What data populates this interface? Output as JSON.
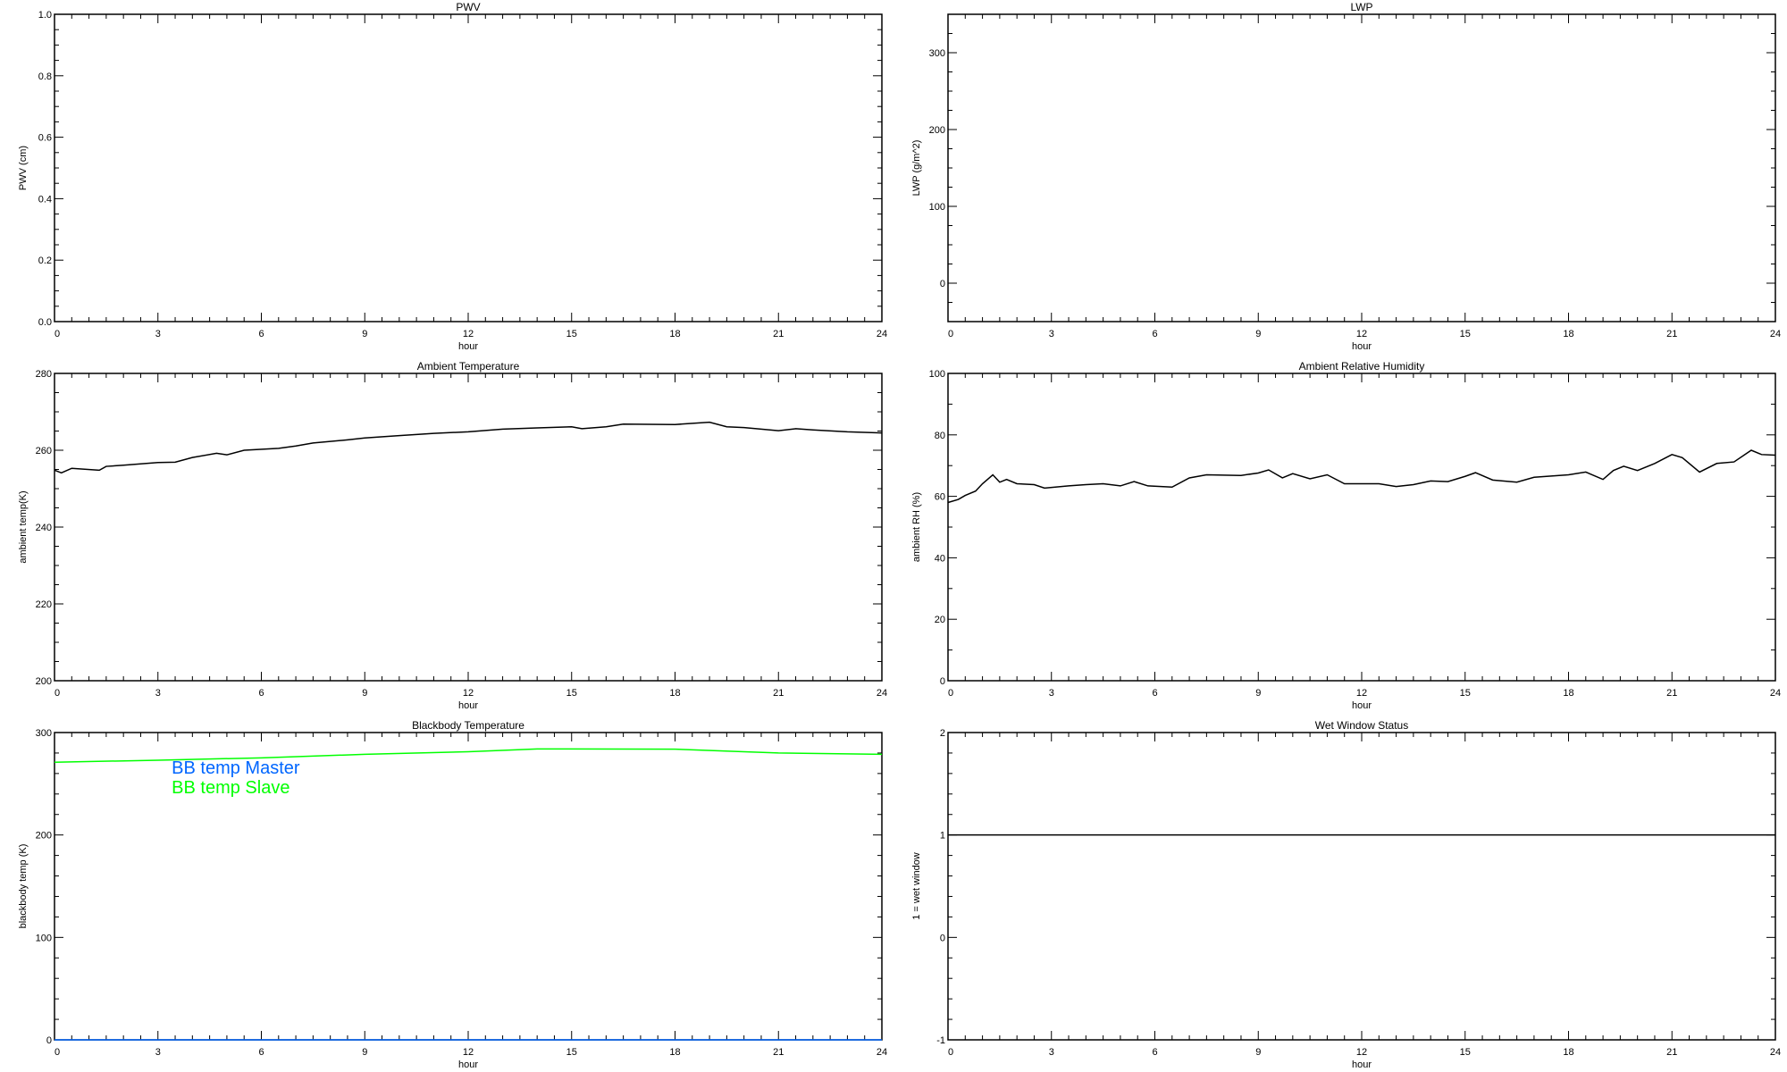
{
  "chart_data": [
    {
      "type": "line",
      "title": "PWV",
      "xlabel": "hour",
      "ylabel": "PWV (cm)",
      "xlim": [
        0,
        24
      ],
      "ylim": [
        0,
        1.0
      ],
      "xticks": [
        "0",
        "3",
        "6",
        "9",
        "12",
        "15",
        "18",
        "21",
        "24"
      ],
      "xminor": 6,
      "yticks": [
        "0.0",
        "0.2",
        "0.4",
        "0.6",
        "0.8",
        "1.0"
      ],
      "ytick_values": [
        0,
        0.2,
        0.4,
        0.6,
        0.8,
        1.0
      ],
      "yminor": 4,
      "grid": false,
      "series": []
    },
    {
      "type": "line",
      "title": "LWP",
      "xlabel": "hour",
      "ylabel": "LWP (g/m^2)",
      "xlim": [
        0,
        24
      ],
      "ylim": [
        -50,
        350
      ],
      "xticks": [
        "0",
        "3",
        "6",
        "9",
        "12",
        "15",
        "18",
        "21",
        "24"
      ],
      "xminor": 6,
      "yticks": [
        "0",
        "100",
        "200",
        "300"
      ],
      "ytick_values": [
        0,
        100,
        200,
        300
      ],
      "yminor": 4,
      "grid": false,
      "series": []
    },
    {
      "type": "line",
      "title": "Ambient Temperature",
      "xlabel": "hour",
      "ylabel": "ambient temp(K)",
      "xlim": [
        0,
        24
      ],
      "ylim": [
        200,
        280
      ],
      "xticks": [
        "0",
        "3",
        "6",
        "9",
        "12",
        "15",
        "18",
        "21",
        "24"
      ],
      "xminor": 6,
      "yticks": [
        "200",
        "220",
        "240",
        "260",
        "280"
      ],
      "ytick_values": [
        200,
        220,
        240,
        260,
        280
      ],
      "yminor": 4,
      "grid": false,
      "series": [
        {
          "color": "#000000",
          "x": [
            0,
            0.2,
            0.5,
            1.3,
            1.5,
            2,
            3,
            3.5,
            4,
            4.7,
            5,
            5.5,
            6.5,
            7,
            7.5,
            8.5,
            9,
            10,
            11,
            12,
            13,
            14,
            15,
            15.3,
            16,
            16.5,
            18,
            19,
            19.5,
            20,
            21,
            21.5,
            22,
            23,
            24
          ],
          "y": [
            254.8,
            254.1,
            255.3,
            254.8,
            255.8,
            256.1,
            256.8,
            256.9,
            258.1,
            259.2,
            258.8,
            260,
            260.5,
            261.1,
            261.9,
            262.7,
            263.2,
            263.8,
            264.4,
            264.8,
            265.5,
            265.8,
            266.1,
            265.6,
            266.1,
            266.8,
            266.7,
            267.3,
            266.1,
            265.9,
            265.1,
            265.6,
            265.3,
            264.8,
            264.5
          ]
        }
      ]
    },
    {
      "type": "line",
      "title": "Ambient Relative Humidity",
      "xlabel": "hour",
      "ylabel": "ambient RH (%)",
      "xlim": [
        0,
        24
      ],
      "ylim": [
        0,
        100
      ],
      "xticks": [
        "0",
        "3",
        "6",
        "9",
        "12",
        "15",
        "18",
        "21",
        "24"
      ],
      "xminor": 6,
      "yticks": [
        "0",
        "20",
        "40",
        "60",
        "80",
        "100"
      ],
      "ytick_values": [
        0,
        20,
        40,
        60,
        80,
        100
      ],
      "yminor": 2,
      "grid": false,
      "series": [
        {
          "color": "#000000",
          "x": [
            0,
            0.3,
            0.5,
            0.8,
            1,
            1.3,
            1.5,
            1.7,
            2,
            2.5,
            2.8,
            3.5,
            4,
            4.5,
            5,
            5.4,
            5.8,
            6.5,
            7,
            7.5,
            8.5,
            9,
            9.3,
            9.7,
            10,
            10.5,
            11,
            11.5,
            12.5,
            13,
            13.5,
            14,
            14.5,
            15,
            15.3,
            15.8,
            16.5,
            17,
            18,
            18.5,
            19,
            19.3,
            19.6,
            20,
            20.5,
            21,
            21.3,
            21.8,
            22.3,
            22.8,
            23.3,
            23.6,
            24
          ],
          "y": [
            58,
            59,
            60.3,
            61.7,
            64.1,
            67,
            64.6,
            65.5,
            64.1,
            63.8,
            62.7,
            63.4,
            63.8,
            64.1,
            63.4,
            64.8,
            63.4,
            63,
            66,
            67,
            66.8,
            67.6,
            68.6,
            66,
            67.4,
            65.7,
            67,
            64.1,
            64.1,
            63.2,
            63.8,
            65,
            64.8,
            66.5,
            67.7,
            65.3,
            64.6,
            66.2,
            67,
            67.9,
            65.5,
            68.4,
            69.8,
            68.4,
            70.7,
            73.6,
            72.6,
            67.9,
            70.7,
            71.2,
            75,
            73.6,
            73.4
          ]
        }
      ]
    },
    {
      "type": "line",
      "title": "Blackbody Temperature",
      "xlabel": "hour",
      "ylabel": "blackbody temp (K)",
      "xlim": [
        0,
        24
      ],
      "ylim": [
        0,
        300
      ],
      "xticks": [
        "0",
        "3",
        "6",
        "9",
        "12",
        "15",
        "18",
        "21",
        "24"
      ],
      "xminor": 6,
      "yticks": [
        "0",
        "100",
        "200",
        "300"
      ],
      "ytick_values": [
        0,
        100,
        200,
        300
      ],
      "yminor": 5,
      "grid": false,
      "legend_placement": "top-left",
      "series": [
        {
          "name": "BB temp Master",
          "color": "#0066ff",
          "x": [
            0,
            24
          ],
          "y": [
            0,
            0
          ]
        },
        {
          "name": "BB temp Slave",
          "color": "#00ff00",
          "x": [
            0,
            3,
            6,
            9,
            12,
            14,
            18,
            20,
            21,
            24
          ],
          "y": [
            271,
            273,
            275.3,
            278.7,
            281.3,
            284,
            283.8,
            281.3,
            280,
            278.7
          ]
        }
      ]
    },
    {
      "type": "line",
      "title": "Wet Window Status",
      "xlabel": "hour",
      "ylabel": "1 = wet window",
      "xlim": [
        0,
        24
      ],
      "ylim": [
        -1,
        2
      ],
      "xticks": [
        "0",
        "3",
        "6",
        "9",
        "12",
        "15",
        "18",
        "21",
        "24"
      ],
      "xminor": 6,
      "yticks": [
        "-1",
        "0",
        "1",
        "2"
      ],
      "ytick_values": [
        -1,
        0,
        1,
        2
      ],
      "yminor": 5,
      "grid": false,
      "series": [
        {
          "color": "#000000",
          "x": [
            0,
            24
          ],
          "y": [
            1,
            1
          ]
        }
      ]
    }
  ]
}
